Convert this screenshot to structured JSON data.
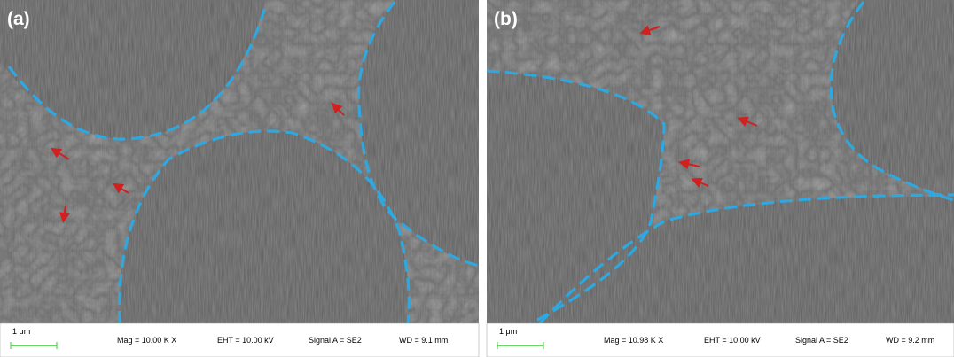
{
  "panels": [
    {
      "label": "(a)",
      "scale_bar": "1 μm",
      "mag": "Mag =  10.00 K X",
      "eht": "EHT = 10.00 kV",
      "signal": "Signal A = SE2",
      "wd": "WD =  9.1 mm"
    },
    {
      "label": "(b)",
      "scale_bar": "1 μm",
      "mag": "Mag =  10.98 K X",
      "eht": "EHT = 10.00 kV",
      "signal": "Signal A = SE2",
      "wd": "WD =  9.2 mm"
    }
  ]
}
